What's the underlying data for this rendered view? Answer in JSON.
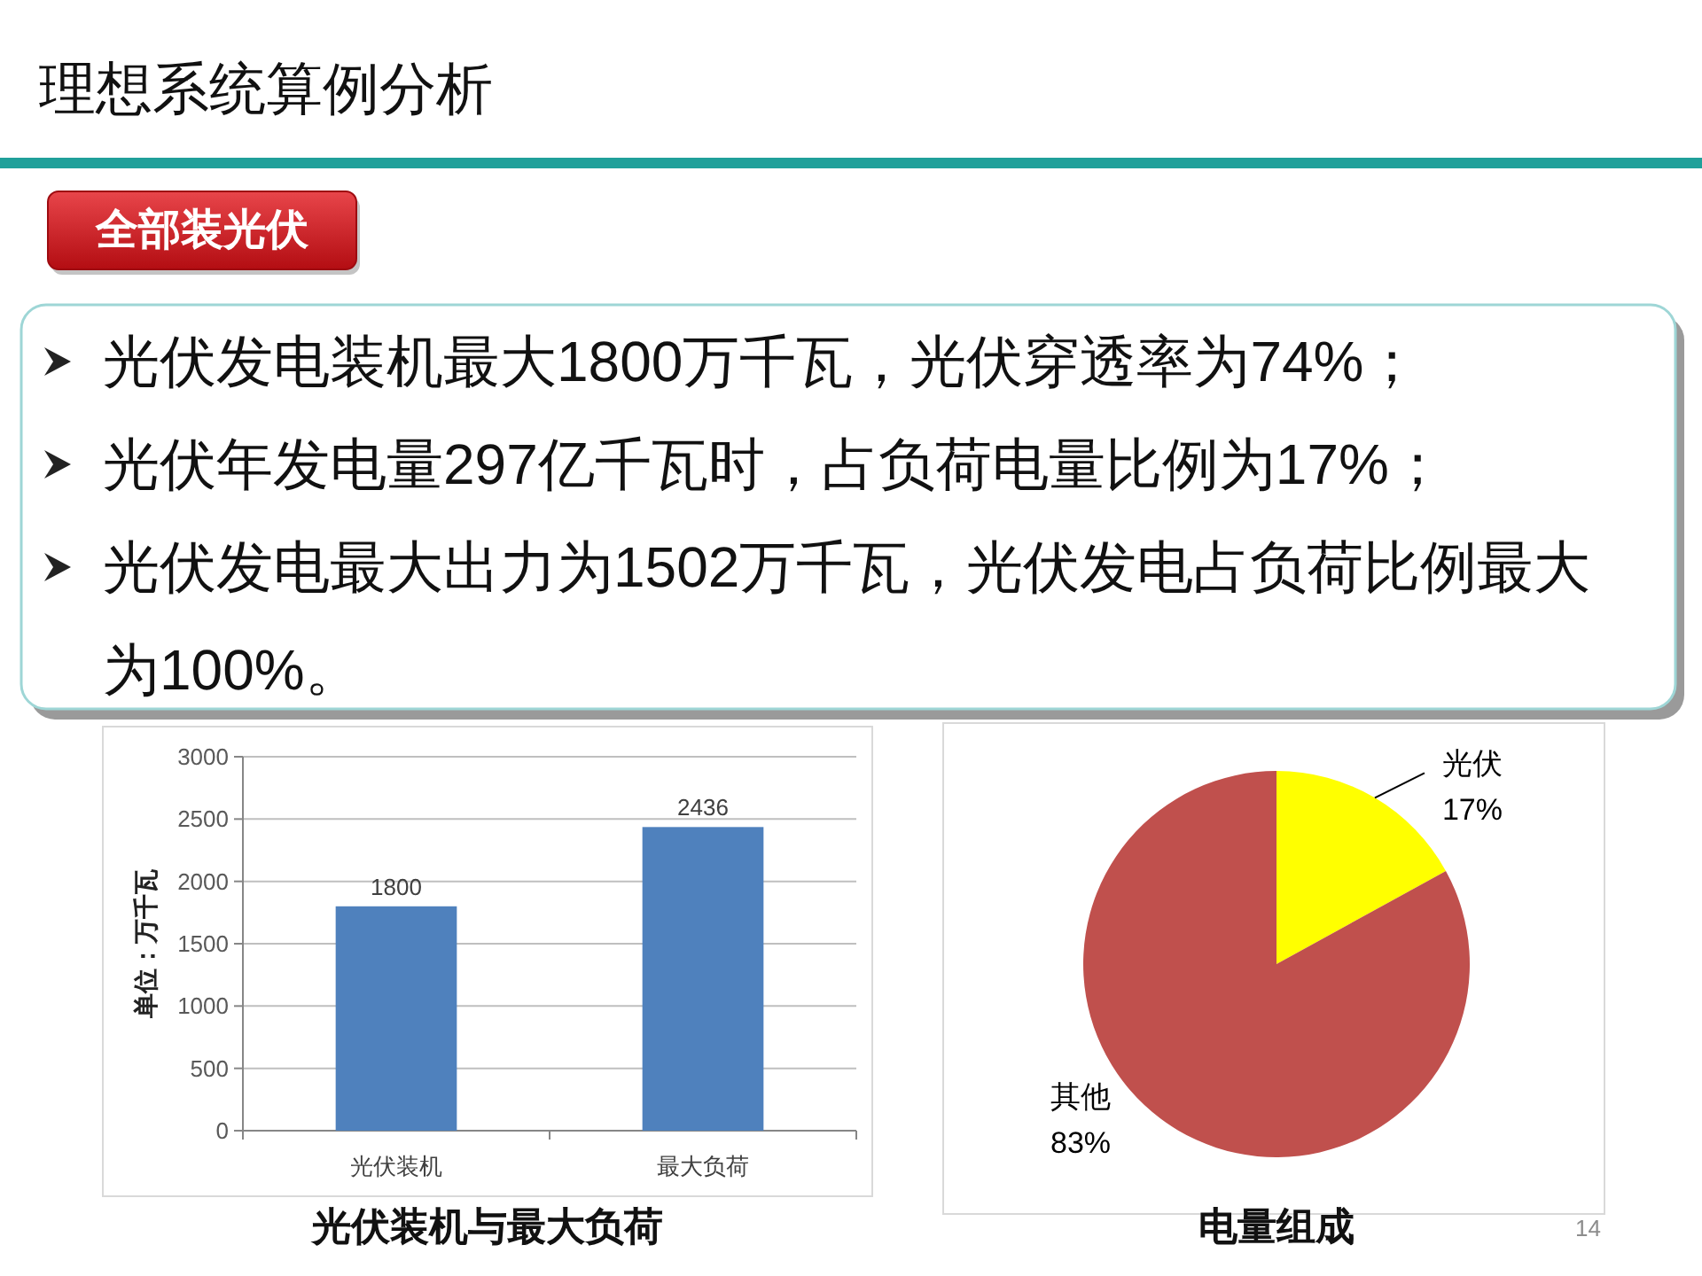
{
  "chart_data": [
    {
      "type": "other",
      "title": "理想系统算例分析",
      "subtitle": "全部装光伏",
      "annotations": [
        "光伏发电装机最大1800万千瓦，光伏穿透率为74%；",
        "光伏年发电量297亿千瓦时，占负荷电量比例为17%；",
        "光伏发电最大出力为1502万千瓦，光伏发电占负荷比例最大为100%。"
      ]
    },
    {
      "type": "bar",
      "title": "光伏装机与最大负荷",
      "ylabel": "单位：万千瓦",
      "categories": [
        "光伏装机",
        "最大负荷"
      ],
      "values": [
        1800,
        2436
      ],
      "color": "#4f81bd",
      "data_labels": true,
      "ylim": [
        0,
        3000
      ],
      "yticks": [
        0,
        500,
        1000,
        1500,
        2000,
        2500,
        3000
      ],
      "grid": "y"
    },
    {
      "type": "pie",
      "title": "电量组成",
      "categories": [
        "光伏",
        "其他"
      ],
      "values": [
        17,
        83
      ],
      "colors": [
        "#ffff00",
        "#c0504d"
      ],
      "value_labels": [
        "17%",
        "83%"
      ],
      "annotations": [
        "14"
      ]
    }
  ]
}
